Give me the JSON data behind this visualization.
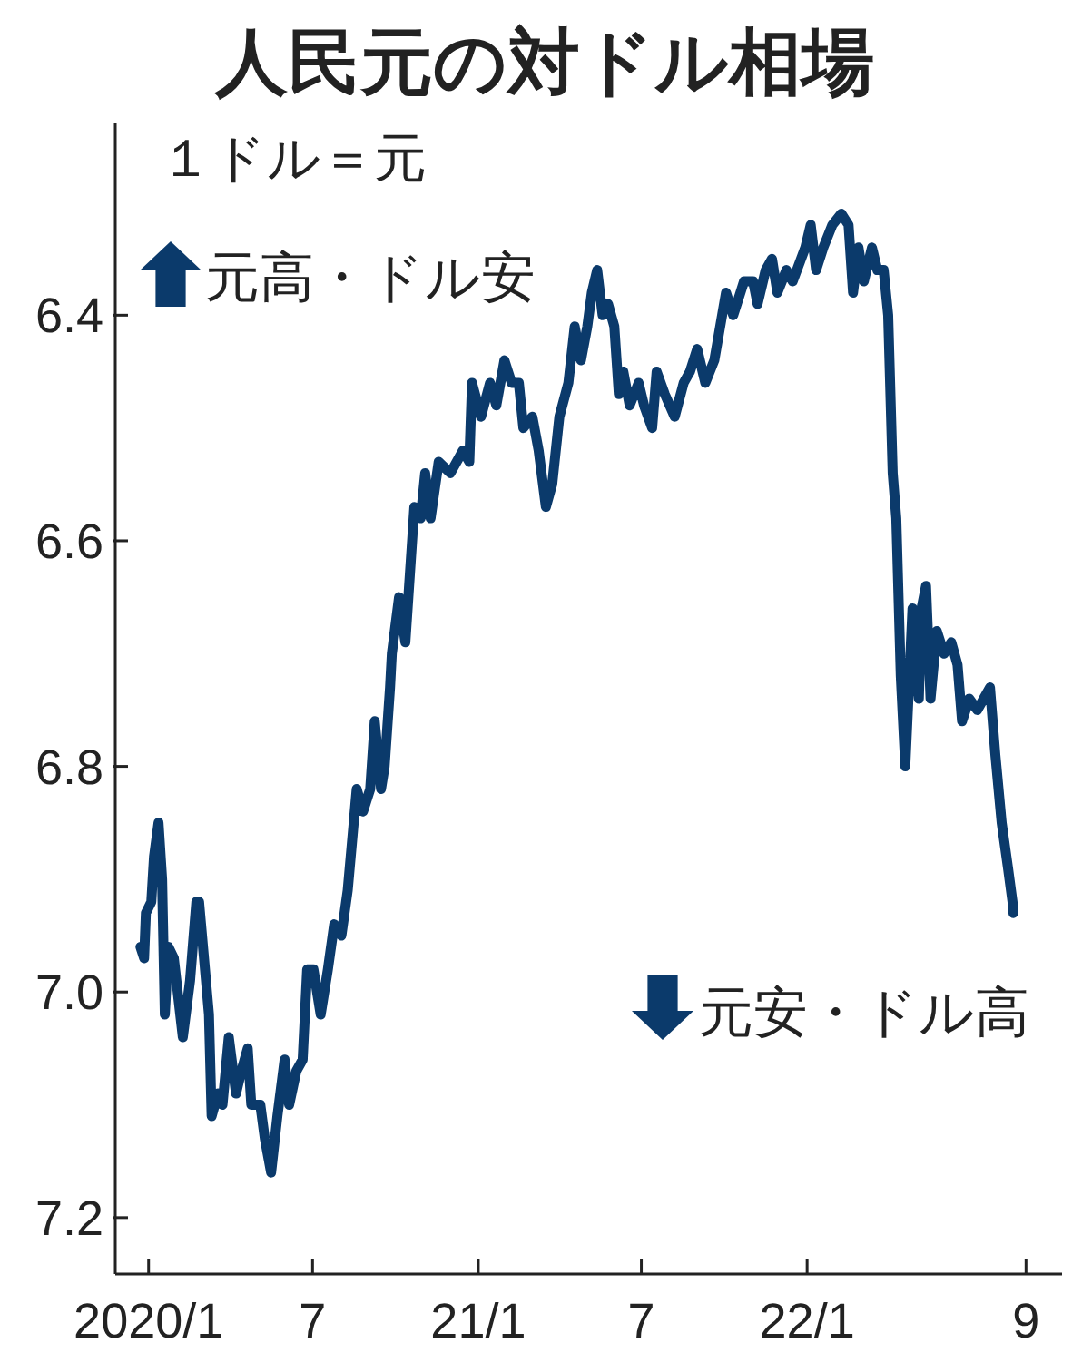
{
  "chart_data": {
    "type": "line",
    "title": "人民元の対ドル相場",
    "ylabel": "１ドル＝元",
    "annotations": [
      "元高・ドル安",
      "元安・ドル高"
    ],
    "x": [
      "2019-12-23",
      "2019-12-27",
      "2019-12-29",
      "2020-01-04",
      "2020-01-07",
      "2020-01-12",
      "2020-01-16",
      "2020-01-19",
      "2020-01-23",
      "2020-01-29",
      "2020-02-08",
      "2020-02-16",
      "2020-02-23",
      "2020-02-26",
      "2020-03-08",
      "2020-03-11",
      "2020-03-18",
      "2020-03-23",
      "2020-03-30",
      "2020-04-07",
      "2020-04-13",
      "2020-04-20",
      "2020-04-24",
      "2020-05-04",
      "2020-05-09",
      "2020-05-16",
      "2020-05-23",
      "2020-05-31",
      "2020-06-05",
      "2020-06-13",
      "2020-06-20",
      "2020-06-25",
      "2020-07-02",
      "2020-07-10",
      "2020-07-18",
      "2020-07-25",
      "2020-08-02",
      "2020-08-09",
      "2020-08-19",
      "2020-08-26",
      "2020-09-03",
      "2020-09-08",
      "2020-09-15",
      "2020-09-19",
      "2020-09-25",
      "2020-09-27",
      "2020-10-05",
      "2020-10-12",
      "2020-10-22",
      "2020-10-29",
      "2020-11-03",
      "2020-11-09",
      "2020-11-18",
      "2020-12-01",
      "2020-12-15",
      "2020-12-22",
      "2020-12-25",
      "2021-01-04",
      "2021-01-14",
      "2021-01-21",
      "2021-01-30",
      "2021-02-07",
      "2021-02-15",
      "2021-02-20",
      "2021-03-02",
      "2021-03-09",
      "2021-03-17",
      "2021-03-24",
      "2021-04-01",
      "2021-04-11",
      "2021-04-18",
      "2021-04-25",
      "2021-05-02",
      "2021-05-07",
      "2021-05-13",
      "2021-05-19",
      "2021-05-25",
      "2021-06-01",
      "2021-06-06",
      "2021-06-11",
      "2021-06-18",
      "2021-06-28",
      "2021-07-04",
      "2021-07-13",
      "2021-07-18",
      "2021-07-27",
      "2021-08-07",
      "2021-08-17",
      "2021-08-24",
      "2021-09-01",
      "2021-09-10",
      "2021-09-20",
      "2021-10-03",
      "2021-10-11",
      "2021-10-23",
      "2021-11-02",
      "2021-11-07",
      "2021-11-16",
      "2021-11-23",
      "2021-11-29",
      "2021-12-09",
      "2021-12-16",
      "2021-12-30",
      "2022-01-05",
      "2022-01-11",
      "2022-01-19",
      "2022-01-29",
      "2022-02-08",
      "2022-02-16",
      "2022-02-21",
      "2022-02-27",
      "2022-03-05",
      "2022-03-14",
      "2022-03-20",
      "2022-03-27",
      "2022-04-01",
      "2022-04-06",
      "2022-04-10",
      "2022-04-15",
      "2022-04-20",
      "2022-04-24",
      "2022-04-28",
      "2022-05-05",
      "2022-05-08",
      "2022-05-13",
      "2022-05-18",
      "2022-05-25",
      "2022-06-02",
      "2022-06-10",
      "2022-06-17",
      "2022-06-22",
      "2022-06-30",
      "2022-07-09",
      "2022-07-16",
      "2022-07-23",
      "2022-07-29",
      "2022-08-05",
      "2022-08-12",
      "2022-08-17",
      "2022-08-18"
    ],
    "series": [
      {
        "color": "#0b3a6b",
        "values": [
          6.96,
          6.97,
          6.93,
          6.92,
          6.88,
          6.85,
          6.9,
          7.02,
          6.96,
          6.97,
          7.04,
          6.99,
          6.92,
          6.92,
          7.02,
          7.11,
          7.09,
          7.1,
          7.04,
          7.09,
          7.07,
          7.05,
          7.1,
          7.1,
          7.13,
          7.16,
          7.11,
          7.06,
          7.1,
          7.07,
          7.06,
          6.98,
          6.98,
          7.02,
          6.98,
          6.94,
          6.95,
          6.91,
          6.82,
          6.84,
          6.82,
          6.76,
          6.82,
          6.8,
          6.73,
          6.7,
          6.65,
          6.69,
          6.57,
          6.58,
          6.54,
          6.58,
          6.53,
          6.54,
          6.52,
          6.53,
          6.46,
          6.49,
          6.46,
          6.48,
          6.44,
          6.46,
          6.46,
          6.5,
          6.49,
          6.52,
          6.57,
          6.55,
          6.49,
          6.46,
          6.41,
          6.44,
          6.41,
          6.38,
          6.36,
          6.4,
          6.39,
          6.41,
          6.47,
          6.45,
          6.48,
          6.46,
          6.48,
          6.5,
          6.45,
          6.47,
          6.49,
          6.46,
          6.45,
          6.43,
          6.46,
          6.44,
          6.38,
          6.4,
          6.37,
          6.37,
          6.39,
          6.36,
          6.35,
          6.38,
          6.36,
          6.37,
          6.34,
          6.32,
          6.36,
          6.34,
          6.32,
          6.31,
          6.32,
          6.38,
          6.34,
          6.37,
          6.34,
          6.36,
          6.36,
          6.4,
          6.54,
          6.58,
          6.72,
          6.8,
          6.73,
          6.66,
          6.74,
          6.66,
          6.64,
          6.74,
          6.68,
          6.7,
          6.69,
          6.71,
          6.76,
          6.74,
          6.75,
          6.74,
          6.73,
          6.79,
          6.85,
          6.89,
          6.92,
          6.93
        ]
      }
    ],
    "xlim": [
      "2019-11-25",
      "2022-10-11"
    ],
    "xticks": [
      {
        "value": "2020-01",
        "label": "2020/1"
      },
      {
        "value": "2020-07",
        "label": "7"
      },
      {
        "value": "2021-01",
        "label": "21/1"
      },
      {
        "value": "2021-07",
        "label": "7"
      },
      {
        "value": "2022-01",
        "label": "22/1"
      },
      {
        "value": "2022-09",
        "label": "9"
      }
    ],
    "ylim": [
      7.25,
      6.23
    ],
    "yticks": [
      6.4,
      6.6,
      6.8,
      {
        "value": 7,
        "label": "7.0"
      },
      7.2
    ],
    "line_style": "solid"
  }
}
